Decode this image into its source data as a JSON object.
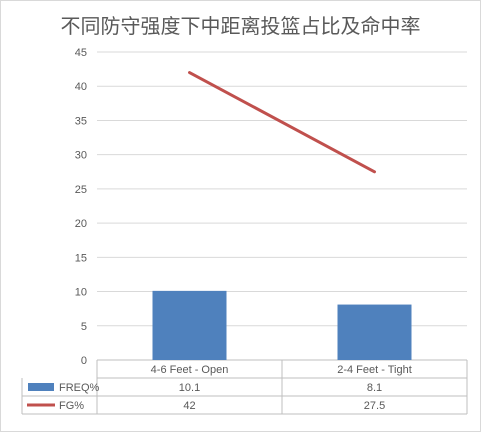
{
  "chart_data": {
    "type": "bar+line",
    "title": "不同防守强度下中距离投篮占比及命中率",
    "categories": [
      "4-6 Feet - Open",
      "2-4 Feet - Tight"
    ],
    "series": [
      {
        "name": "FREQ%",
        "type": "bar",
        "color": "#4f81bd",
        "values": [
          10.1,
          8.1
        ],
        "labels": [
          "10.1",
          "8.1"
        ]
      },
      {
        "name": "FG%",
        "type": "line",
        "color": "#c0504d",
        "values": [
          42,
          27.5
        ],
        "labels": [
          "42",
          "27.5"
        ]
      }
    ],
    "ylim": [
      0,
      45
    ],
    "yticks": [
      "0",
      "5",
      "10",
      "15",
      "20",
      "25",
      "30",
      "35",
      "40",
      "45"
    ],
    "grid": true,
    "legend": "data-table-left"
  }
}
